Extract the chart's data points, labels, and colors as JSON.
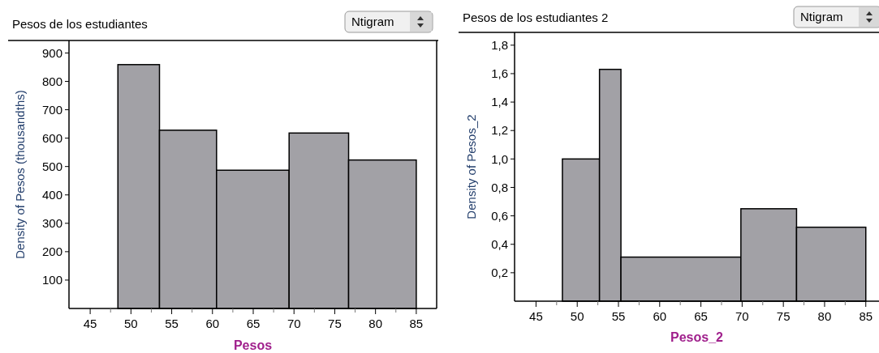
{
  "chart_data": [
    {
      "type": "histogram",
      "title": "Pesos de los estudiantes",
      "xlabel": "Pesos",
      "ylabel": "Density of Pesos (thousandths)",
      "annotations": [
        "Ntigram"
      ],
      "color": "#a2a1a6",
      "bins": [
        48.4,
        53.5,
        60.5,
        69.4,
        76.7,
        85
      ],
      "values": [
        859,
        628,
        487,
        618,
        523
      ],
      "xlim": [
        42.4,
        87.5
      ],
      "ylim": [
        0,
        944
      ],
      "xticks": [
        45,
        {
          "value": 47.5,
          "label": null
        },
        50,
        {
          "value": 52.5,
          "label": null
        },
        55,
        {
          "value": 57.5,
          "label": null
        },
        60,
        {
          "value": 62.5,
          "label": null
        },
        65,
        {
          "value": 67.5,
          "label": null
        },
        70,
        {
          "value": 72.5,
          "label": null
        },
        75,
        {
          "value": 77.5,
          "label": null
        },
        80,
        {
          "value": 82.5,
          "label": null
        },
        85
      ],
      "yticks": [
        100,
        200,
        300,
        400,
        500,
        600,
        700,
        800,
        900
      ]
    },
    {
      "type": "histogram",
      "title": "Pesos de los estudiantes 2",
      "xlabel": "Pesos_2",
      "ylabel": "Density of Pesos_2",
      "annotations": [
        "Ntigram"
      ],
      "color": "#a2a1a6",
      "bins": [
        48.2,
        52.7,
        55.3,
        69.85,
        76.6,
        85
      ],
      "values": [
        1.0,
        1.63,
        0.31,
        0.65,
        0.52
      ],
      "xlim": [
        42.4,
        86.6
      ],
      "ylim": [
        0,
        1.89
      ],
      "xticks": [
        45,
        {
          "value": 47.5,
          "label": null
        },
        50,
        {
          "value": 52.5,
          "label": null
        },
        55,
        {
          "value": 57.5,
          "label": null
        },
        60,
        {
          "value": 62.5,
          "label": null
        },
        65,
        {
          "value": 67.5,
          "label": null
        },
        70,
        {
          "value": 72.5,
          "label": null
        },
        75,
        {
          "value": 77.5,
          "label": null
        },
        80,
        {
          "value": 82.5,
          "label": null
        },
        85
      ],
      "yticks": [
        {
          "value": 0.2,
          "label": "0,2"
        },
        {
          "value": 0.4,
          "label": "0,4"
        },
        {
          "value": 0.6,
          "label": "0,6"
        },
        {
          "value": 0.8,
          "label": "0,8"
        },
        {
          "value": 1.0,
          "label": "1,0"
        },
        {
          "value": 1.2,
          "label": "1,2"
        },
        {
          "value": 1.4,
          "label": "1,4"
        },
        {
          "value": 1.6,
          "label": "1,6"
        },
        {
          "value": 1.8,
          "label": "1,8"
        }
      ]
    }
  ]
}
